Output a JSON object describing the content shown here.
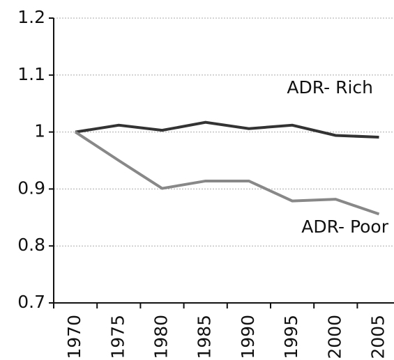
{
  "chart_data": {
    "type": "line",
    "categories": [
      "1970",
      "1975",
      "1980",
      "1985",
      "1990",
      "1995",
      "2000",
      "2005"
    ],
    "series": [
      {
        "name": "ADR- Rich",
        "color": "#333333",
        "values": [
          1.0,
          1.012,
          1.003,
          1.017,
          1.006,
          1.012,
          0.994,
          0.991
        ]
      },
      {
        "name": "ADR- Poor",
        "color": "#888888",
        "values": [
          1.0,
          0.95,
          0.901,
          0.914,
          0.914,
          0.879,
          0.882,
          0.856
        ]
      }
    ],
    "ylim": [
      0.7,
      1.2
    ],
    "yticks": [
      0.7,
      0.8,
      0.9,
      1,
      1.1,
      1.2
    ],
    "grid": true
  }
}
